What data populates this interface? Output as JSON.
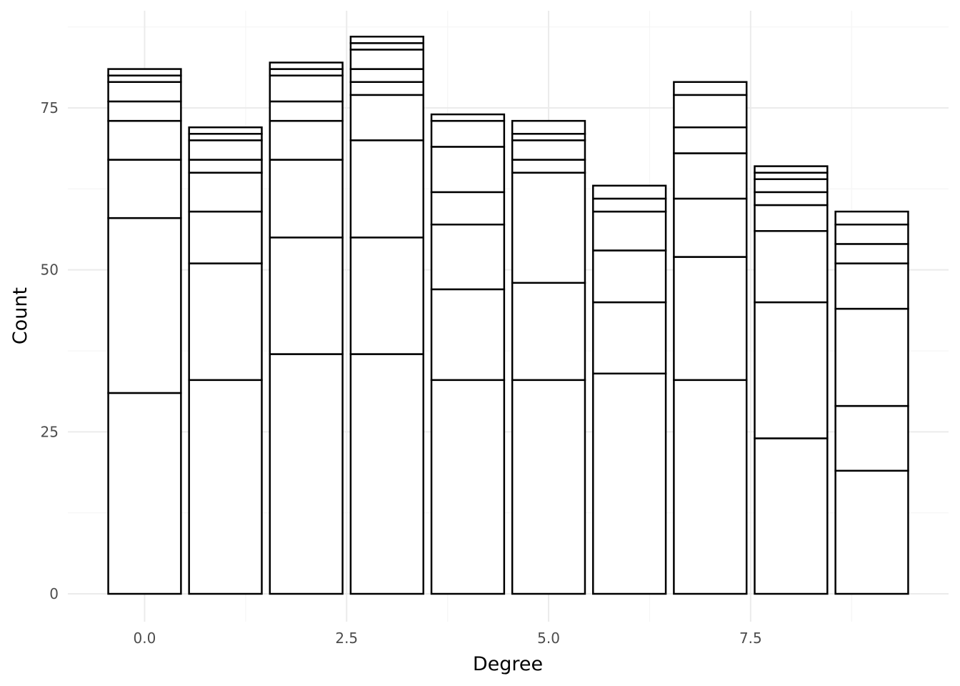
{
  "chart_data": {
    "type": "bar",
    "stacked": true,
    "title": "",
    "xlabel": "Degree",
    "ylabel": "Count",
    "x": [
      0,
      1,
      2,
      3,
      4,
      5,
      6,
      7,
      8,
      9
    ],
    "segment_boundaries": [
      [
        31,
        58,
        67,
        73,
        76,
        79,
        80,
        81
      ],
      [
        33,
        51,
        59,
        65,
        67,
        70,
        71,
        72
      ],
      [
        37,
        55,
        67,
        73,
        76,
        80,
        81,
        82
      ],
      [
        37,
        55,
        70,
        77,
        79,
        81,
        84,
        85,
        86
      ],
      [
        33,
        47,
        57,
        62,
        69,
        73,
        74
      ],
      [
        33,
        48,
        65,
        67,
        70,
        71,
        73
      ],
      [
        34,
        45,
        53,
        59,
        61,
        63
      ],
      [
        33,
        52,
        61,
        68,
        72,
        77,
        79
      ],
      [
        24,
        45,
        56,
        60,
        62,
        64,
        65,
        66
      ],
      [
        19,
        29,
        44,
        51,
        54,
        57,
        59
      ]
    ],
    "totals": [
      81,
      72,
      82,
      86,
      74,
      73,
      63,
      79,
      66,
      59
    ],
    "xlim": [
      -0.95,
      9.95
    ],
    "ylim": [
      -4.3,
      90
    ],
    "x_ticks": [
      {
        "value": 0,
        "label": "0.0"
      },
      {
        "value": 2.5,
        "label": "2.5"
      },
      {
        "value": 5,
        "label": "5.0"
      },
      {
        "value": 7.5,
        "label": "7.5"
      }
    ],
    "y_ticks": [
      {
        "value": 0,
        "label": "0"
      },
      {
        "value": 25,
        "label": "25"
      },
      {
        "value": 50,
        "label": "50"
      },
      {
        "value": 75,
        "label": "75"
      }
    ],
    "x_minor": [
      1.25,
      3.75,
      6.25,
      8.75
    ],
    "y_minor": [
      12.5,
      37.5,
      62.5,
      87.5
    ],
    "bar_width": 0.9,
    "grid": true,
    "legend": "none",
    "colors": {
      "grid_major": "#ebebeb",
      "grid_minor": "#f5f5f5",
      "bar_fill": "#ffffff",
      "bar_stroke": "#000000"
    }
  }
}
